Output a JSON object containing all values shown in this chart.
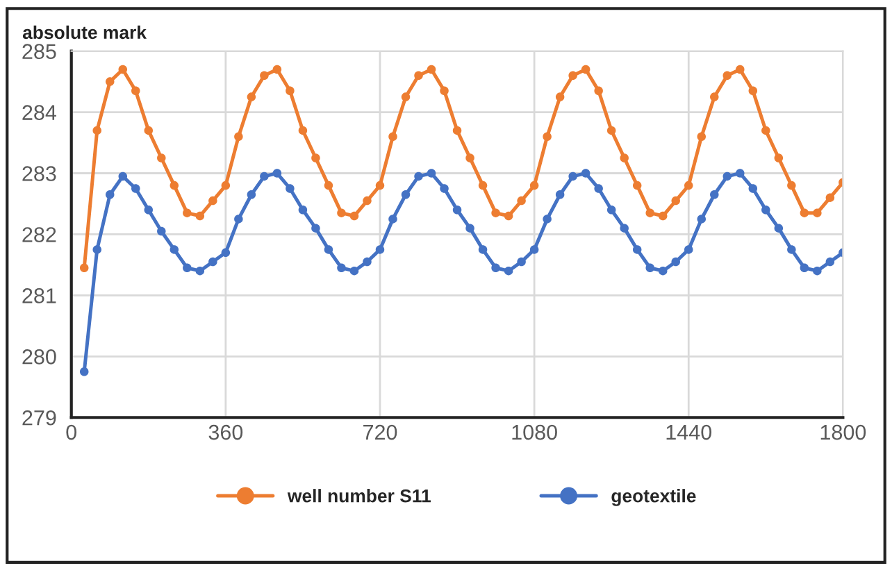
{
  "chart_data": {
    "type": "line",
    "ylabel": "absolute mark",
    "x": [
      30,
      60,
      90,
      120,
      150,
      180,
      210,
      240,
      270,
      300,
      330,
      360,
      390,
      420,
      450,
      480,
      510,
      540,
      570,
      600,
      630,
      660,
      690,
      720,
      750,
      780,
      810,
      840,
      870,
      900,
      930,
      960,
      990,
      1020,
      1050,
      1080,
      1110,
      1140,
      1170,
      1200,
      1230,
      1260,
      1290,
      1320,
      1350,
      1380,
      1410,
      1440,
      1470,
      1500,
      1530,
      1560,
      1590,
      1620,
      1650,
      1680,
      1710,
      1740,
      1770,
      1800
    ],
    "series": [
      {
        "name": "well number S11",
        "color": "#ed7d31",
        "values": [
          281.45,
          283.7,
          284.5,
          284.7,
          284.35,
          283.7,
          283.25,
          282.8,
          282.35,
          282.3,
          282.55,
          282.8,
          283.6,
          284.25,
          284.6,
          284.7,
          284.35,
          283.7,
          283.25,
          282.8,
          282.35,
          282.3,
          282.55,
          282.8,
          283.6,
          284.25,
          284.6,
          284.7,
          284.35,
          283.7,
          283.25,
          282.8,
          282.35,
          282.3,
          282.55,
          282.8,
          283.6,
          284.25,
          284.6,
          284.7,
          284.35,
          283.7,
          283.25,
          282.8,
          282.35,
          282.3,
          282.55,
          282.8,
          283.6,
          284.25,
          284.6,
          284.7,
          284.35,
          283.7,
          283.25,
          282.8,
          282.35,
          282.35,
          282.6,
          282.85
        ]
      },
      {
        "name": "geotextile",
        "color": "#4472c4",
        "values": [
          279.75,
          281.75,
          282.65,
          282.95,
          282.75,
          282.4,
          282.05,
          281.75,
          281.45,
          281.4,
          281.55,
          281.7,
          282.25,
          282.65,
          282.95,
          283.0,
          282.75,
          282.4,
          282.1,
          281.75,
          281.45,
          281.4,
          281.55,
          281.75,
          282.25,
          282.65,
          282.95,
          283.0,
          282.75,
          282.4,
          282.1,
          281.75,
          281.45,
          281.4,
          281.55,
          281.75,
          282.25,
          282.65,
          282.95,
          283.0,
          282.75,
          282.4,
          282.1,
          281.75,
          281.45,
          281.4,
          281.55,
          281.75,
          282.25,
          282.65,
          282.95,
          283.0,
          282.75,
          282.4,
          282.1,
          281.75,
          281.45,
          281.4,
          281.55,
          281.7
        ]
      }
    ],
    "xlim": [
      0,
      1800
    ],
    "xticks": [
      0,
      360,
      720,
      1080,
      1440,
      1800
    ],
    "ylim": [
      279,
      285
    ],
    "yticks": [
      279,
      280,
      281,
      282,
      283,
      284,
      285
    ],
    "grid": true,
    "legend": "bottom",
    "marker": "circle",
    "line_style": "solid"
  }
}
